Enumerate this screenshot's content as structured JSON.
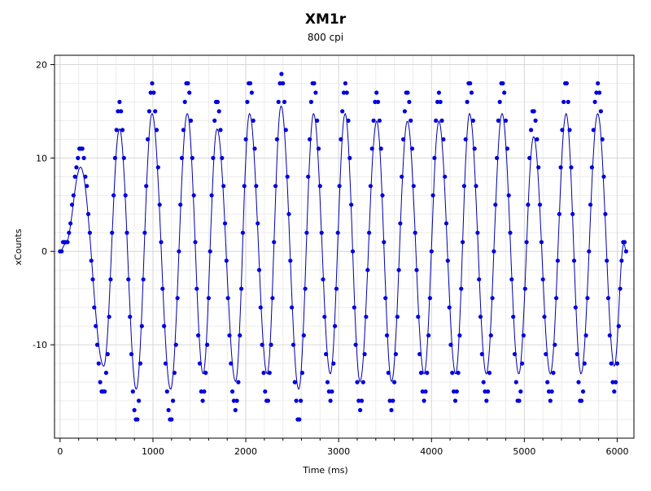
{
  "chart_data": {
    "type": "scatter",
    "title": "XM1r",
    "subtitle": "800 cpi",
    "xlabel": "Time (ms)",
    "ylabel": "xCounts",
    "xlim": [
      -60,
      6180
    ],
    "ylim": [
      -20,
      21
    ],
    "x_ticks": [
      0,
      1000,
      2000,
      3000,
      4000,
      5000,
      6000
    ],
    "y_ticks": [
      -10,
      0,
      10,
      20
    ],
    "x_minor_step": 200,
    "y_minor_step": 2,
    "grid": true,
    "colors": {
      "points": "#0000dd",
      "line": "#0000aa",
      "grid_major": "#d6d6d6",
      "grid_minor": "#ececec",
      "axis": "#000000"
    },
    "sample_interval_ms": 16,
    "peaks": [
      {
        "t": 0,
        "v": 0
      },
      {
        "t": 60,
        "v": 1
      },
      {
        "t": 220,
        "v": 11
      },
      {
        "t": 470,
        "v": -15
      },
      {
        "t": 640,
        "v": 16
      },
      {
        "t": 820,
        "v": -18
      },
      {
        "t": 990,
        "v": 18
      },
      {
        "t": 1190,
        "v": -18
      },
      {
        "t": 1370,
        "v": 18
      },
      {
        "t": 1540,
        "v": -16
      },
      {
        "t": 1690,
        "v": 16
      },
      {
        "t": 1890,
        "v": -17
      },
      {
        "t": 2040,
        "v": 18
      },
      {
        "t": 2230,
        "v": -16
      },
      {
        "t": 2380,
        "v": 19
      },
      {
        "t": 2570,
        "v": -18
      },
      {
        "t": 2730,
        "v": 18
      },
      {
        "t": 2910,
        "v": -16
      },
      {
        "t": 3070,
        "v": 18
      },
      {
        "t": 3230,
        "v": -17
      },
      {
        "t": 3410,
        "v": 17
      },
      {
        "t": 3570,
        "v": -17
      },
      {
        "t": 3740,
        "v": 17
      },
      {
        "t": 3920,
        "v": -16
      },
      {
        "t": 4080,
        "v": 17
      },
      {
        "t": 4260,
        "v": -16
      },
      {
        "t": 4410,
        "v": 18
      },
      {
        "t": 4590,
        "v": -16
      },
      {
        "t": 4760,
        "v": 18
      },
      {
        "t": 4940,
        "v": -16
      },
      {
        "t": 5100,
        "v": 15
      },
      {
        "t": 5280,
        "v": -16
      },
      {
        "t": 5450,
        "v": 18
      },
      {
        "t": 5610,
        "v": -16
      },
      {
        "t": 5790,
        "v": 18
      },
      {
        "t": 5970,
        "v": -15
      },
      {
        "t": 6070,
        "v": 1
      },
      {
        "t": 6100,
        "v": 0
      }
    ]
  }
}
